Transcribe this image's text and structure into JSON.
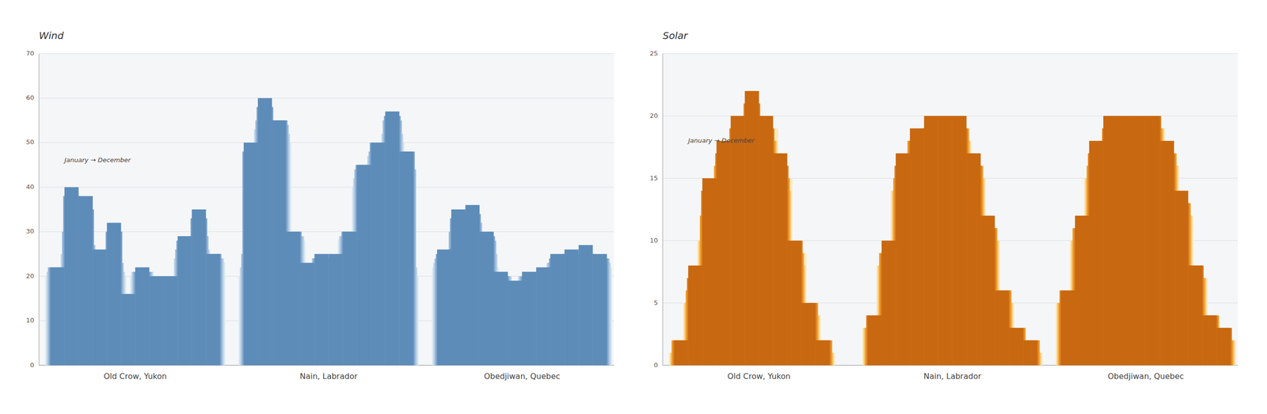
{
  "chart_data": [
    {
      "type": "bar",
      "title": "Wind",
      "annotation": {
        "text": "January → December",
        "y": 46
      },
      "categories": [
        "Old Crow, Yukon",
        "Nain, Labrador",
        "Obedjiwan, Quebec"
      ],
      "ylim": [
        0,
        70
      ],
      "yticks": [
        0,
        10,
        20,
        30,
        40,
        50,
        60,
        70
      ],
      "grid": true,
      "series": [
        {
          "color": "#dce9f0",
          "values": [
            [
              20,
              20,
              20,
              20,
              20,
              14,
              20,
              19,
              19,
              20,
              22,
              23
            ],
            [
              20,
              50,
              50,
              28,
              21,
              22,
              23,
              28,
              40,
              45,
              50,
              20
            ],
            [
              22,
              22,
              22,
              22,
              19,
              17,
              19,
              20,
              22,
              22,
              22,
              22
            ]
          ]
        },
        {
          "color": "#c0d5e8",
          "values": [
            [
              21,
              25,
              22,
              21,
              21,
              15,
              21,
              20,
              20,
              24,
              26,
              24
            ],
            [
              22,
              53,
              52,
              29,
              22,
              23,
              24,
              29,
              42,
              47,
              52,
              22
            ],
            [
              23,
              26,
              28,
              25,
              20,
              18,
              20,
              21,
              23,
              23,
              23,
              23
            ]
          ]
        },
        {
          "color": "#a0bedc",
          "values": [
            [
              22,
              30,
              27,
              23,
              23,
              16,
              21,
              20,
              20,
              26,
              29,
              24
            ],
            [
              25,
              55,
              54,
              29,
              22,
              24,
              24,
              29,
              44,
              48,
              55,
              44
            ],
            [
              24,
              30,
              32,
              28,
              20,
              18,
              20,
              21,
              23,
              24,
              24,
              24
            ]
          ]
        },
        {
          "color": "#7ea4cc",
          "values": [
            [
              22,
              38,
              35,
              25,
              30,
              16,
              21,
              20,
              20,
              28,
              33,
              25
            ],
            [
              48,
              58,
              55,
              30,
              23,
              24,
              24,
              30,
              45,
              50,
              56,
              48
            ],
            [
              25,
              33,
              34,
              29,
              20,
              18,
              20,
              21,
              24,
              25,
              25,
              24
            ]
          ]
        },
        {
          "color": "#5d8cb8",
          "values": [
            [
              22,
              40,
              38,
              26,
              32,
              16,
              22,
              20,
              20,
              29,
              35,
              25
            ],
            [
              50,
              60,
              55,
              30,
              23,
              25,
              25,
              30,
              45,
              50,
              57,
              48
            ],
            [
              26,
              35,
              36,
              30,
              21,
              19,
              21,
              22,
              25,
              26,
              27,
              25
            ]
          ]
        }
      ]
    },
    {
      "type": "bar",
      "title": "Solar",
      "annotation": {
        "text": "January → December",
        "y": 18
      },
      "categories": [
        "Old Crow, Yukon",
        "Nain, Labrador",
        "Obedjiwan, Quebec"
      ],
      "ylim": [
        0,
        25
      ],
      "yticks": [
        0,
        5,
        10,
        15,
        20,
        25
      ],
      "grid": true,
      "series": [
        {
          "color": "#fce8b8",
          "values": [
            [
              1,
              5,
              10,
              15,
              18,
              20,
              19,
              15,
              9,
              4,
              1,
              0
            ],
            [
              3,
              8,
              14,
              17,
              18,
              19,
              18,
              15,
              10,
              5,
              2,
              1
            ],
            [
              5,
              10,
              15,
              18,
              19,
              19,
              19,
              16,
              12,
              7,
              3,
              2
            ]
          ]
        },
        {
          "color": "#f8c870",
          "values": [
            [
              1,
              5,
              10,
              15,
              17,
              19,
              18,
              14,
              8,
              4,
              1,
              0
            ],
            [
              3,
              8,
              14,
              17,
              18,
              19,
              18,
              15,
              10,
              5,
              2,
              1
            ],
            [
              5,
              10,
              15,
              18,
              19,
              19,
              19,
              16,
              12,
              7,
              3,
              2
            ]
          ]
        },
        {
          "color": "#f0a030",
          "values": [
            [
              2,
              6,
              12,
              16,
              18,
              20,
              18,
              15,
              9,
              5,
              2,
              0
            ],
            [
              3,
              9,
              15,
              18,
              19,
              19,
              19,
              16,
              11,
              6,
              3,
              2
            ],
            [
              5,
              11,
              16,
              18,
              19,
              19,
              19,
              17,
              13,
              7,
              4,
              2
            ]
          ]
        },
        {
          "color": "#e08020",
          "values": [
            [
              2,
              7,
              14,
              17,
              19,
              21,
              19,
              16,
              10,
              5,
              2,
              0
            ],
            [
              4,
              9,
              16,
              18,
              19,
              20,
              19,
              16,
              11,
              6,
              3,
              2
            ],
            [
              6,
              11,
              17,
              19,
              20,
              20,
              20,
              17,
              13,
              8,
              4,
              3
            ]
          ]
        },
        {
          "color": "#c86810",
          "values": [
            [
              2,
              8,
              15,
              18,
              20,
              22,
              20,
              17,
              10,
              5,
              2,
              0
            ],
            [
              4,
              10,
              17,
              19,
              20,
              20,
              20,
              17,
              12,
              6,
              3,
              2
            ],
            [
              6,
              12,
              18,
              20,
              20,
              20,
              20,
              18,
              14,
              8,
              4,
              3
            ]
          ]
        }
      ]
    }
  ]
}
